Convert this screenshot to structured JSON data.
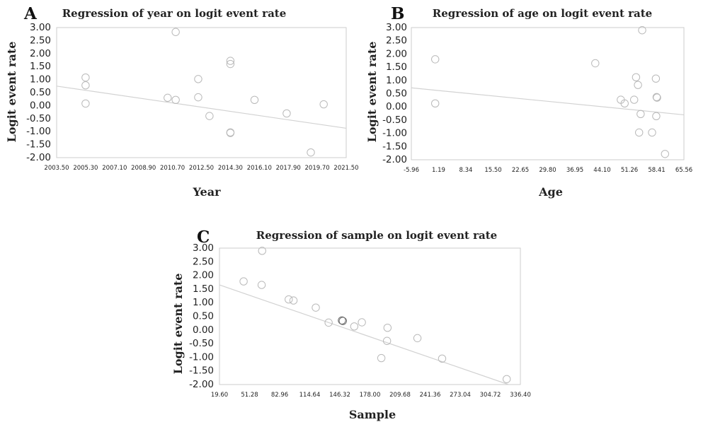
{
  "chart_data": [
    {
      "panel": "A",
      "type": "scatter",
      "title": "Regression of year on logit event rate",
      "xlabel": "Year",
      "ylabel": "Logit event rate",
      "xlim": [
        2003.5,
        2021.5
      ],
      "ylim": [
        -2.0,
        3.0
      ],
      "xticks": [
        "2003.50",
        "2005.30",
        "2007.10",
        "2008.90",
        "2010.70",
        "2012.50",
        "2014.30",
        "2016.10",
        "2017.90",
        "2019.70",
        "2021.50"
      ],
      "yticks": [
        "3.00",
        "2.50",
        "2.00",
        "1.50",
        "1.00",
        "0.50",
        "0.00",
        "-0.50",
        "-1.00",
        "-1.50",
        "-2.00"
      ],
      "points": [
        {
          "x": 2005.3,
          "y": 1.08
        },
        {
          "x": 2005.3,
          "y": 0.78
        },
        {
          "x": 2005.3,
          "y": 0.08
        },
        {
          "x": 2010.4,
          "y": 0.3
        },
        {
          "x": 2010.9,
          "y": 2.83
        },
        {
          "x": 2010.9,
          "y": 0.22
        },
        {
          "x": 2012.3,
          "y": 1.02
        },
        {
          "x": 2012.3,
          "y": 0.32
        },
        {
          "x": 2013.0,
          "y": -0.4
        },
        {
          "x": 2014.3,
          "y": 1.72
        },
        {
          "x": 2014.3,
          "y": 1.6
        },
        {
          "x": 2014.3,
          "y": -1.03
        },
        {
          "x": 2014.3,
          "y": -1.05
        },
        {
          "x": 2015.8,
          "y": 0.22
        },
        {
          "x": 2017.8,
          "y": -0.3
        },
        {
          "x": 2019.3,
          "y": -1.8
        },
        {
          "x": 2020.1,
          "y": 0.05
        }
      ],
      "fit_line": {
        "x": [
          2003.5,
          2021.5
        ],
        "y": [
          0.75,
          -0.87
        ]
      }
    },
    {
      "panel": "B",
      "type": "scatter",
      "title": "Regression of age on logit event rate",
      "xlabel": "Age",
      "ylabel": "Logit event rate",
      "xlim": [
        -5.96,
        65.56
      ],
      "ylim": [
        -2.0,
        3.0
      ],
      "xticks": [
        "-5.96",
        "1.19",
        "8.34",
        "15.50",
        "22.65",
        "29.80",
        "36.95",
        "44.10",
        "51.26",
        "58.41",
        "65.56"
      ],
      "yticks": [
        "3.00",
        "2.50",
        "2.00",
        "1.50",
        "1.00",
        "0.50",
        "0.00",
        "-0.50",
        "-1.00",
        "-1.50",
        "-2.00"
      ],
      "points": [
        {
          "x": 0.3,
          "y": 1.8
        },
        {
          "x": 0.3,
          "y": 0.13
        },
        {
          "x": 42.3,
          "y": 1.65
        },
        {
          "x": 49.0,
          "y": 0.27
        },
        {
          "x": 50.0,
          "y": 0.13
        },
        {
          "x": 52.5,
          "y": 0.27
        },
        {
          "x": 53.0,
          "y": 1.12
        },
        {
          "x": 53.5,
          "y": 0.83
        },
        {
          "x": 53.8,
          "y": -0.97
        },
        {
          "x": 54.2,
          "y": -0.27
        },
        {
          "x": 54.6,
          "y": 2.9
        },
        {
          "x": 57.2,
          "y": -0.97
        },
        {
          "x": 58.2,
          "y": 1.07
        },
        {
          "x": 58.4,
          "y": 0.37
        },
        {
          "x": 58.5,
          "y": 0.35
        },
        {
          "x": 58.3,
          "y": -0.35
        },
        {
          "x": 60.6,
          "y": -1.78
        }
      ],
      "fit_line": {
        "x": [
          -5.96,
          65.56
        ],
        "y": [
          0.72,
          -0.3
        ]
      }
    },
    {
      "panel": "C",
      "type": "scatter",
      "title": "Regression of sample on logit event rate",
      "xlabel": "Sample",
      "ylabel": "Logit event rate",
      "xlim": [
        19.6,
        336.4
      ],
      "ylim": [
        -2.0,
        3.0
      ],
      "xticks": [
        "19.60",
        "51.28",
        "82.96",
        "114.64",
        "146.32",
        "178.00",
        "209.68",
        "241.36",
        "273.04",
        "304.72",
        "336.40"
      ],
      "yticks": [
        "3.00",
        "2.50",
        "2.00",
        "1.50",
        "1.00",
        "0.50",
        "0.00",
        "-0.50",
        "-1.00",
        "-1.50",
        "-2.00"
      ],
      "points": [
        {
          "x": 45.0,
          "y": 1.78
        },
        {
          "x": 64.5,
          "y": 2.9
        },
        {
          "x": 64.0,
          "y": 1.65
        },
        {
          "x": 92.5,
          "y": 1.12
        },
        {
          "x": 97.5,
          "y": 1.08
        },
        {
          "x": 121.0,
          "y": 0.82
        },
        {
          "x": 134.5,
          "y": 0.27
        },
        {
          "x": 148.5,
          "y": 0.35,
          "dark": true
        },
        {
          "x": 149.5,
          "y": 0.33,
          "dark": true
        },
        {
          "x": 161.5,
          "y": 0.13
        },
        {
          "x": 169.5,
          "y": 0.28
        },
        {
          "x": 190.0,
          "y": -1.03
        },
        {
          "x": 196.0,
          "y": -0.4
        },
        {
          "x": 196.5,
          "y": 0.08
        },
        {
          "x": 228.0,
          "y": -0.3
        },
        {
          "x": 254.0,
          "y": -1.05
        },
        {
          "x": 322.0,
          "y": -1.8
        }
      ],
      "fit_line": {
        "x": [
          19.6,
          336.4
        ],
        "y": [
          1.65,
          -2.15
        ]
      }
    }
  ]
}
